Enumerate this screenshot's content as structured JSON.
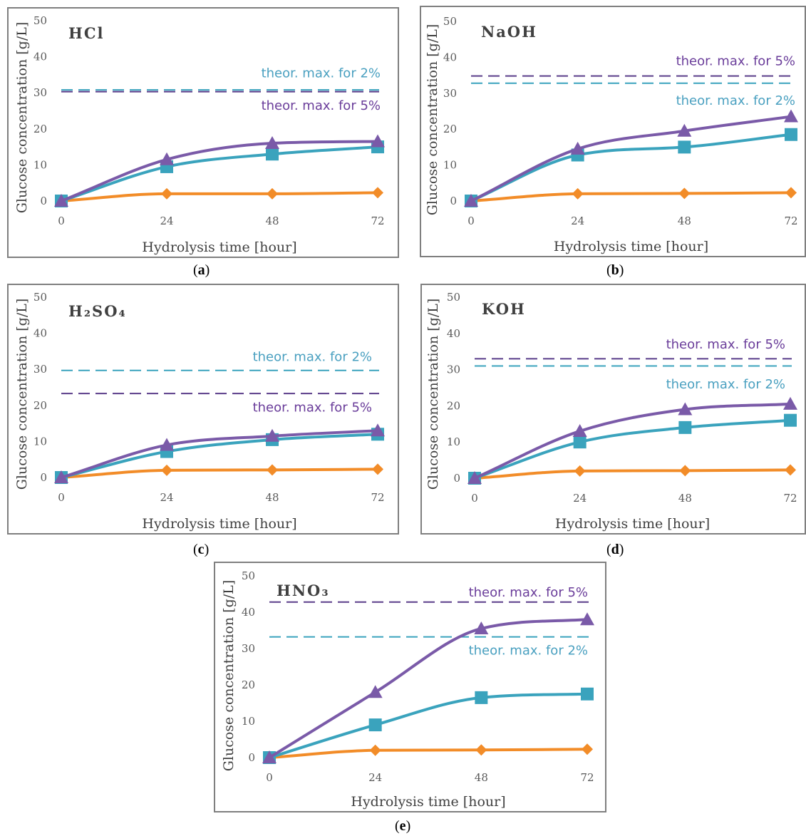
{
  "colors": {
    "purple": "#7a5aa8",
    "teal": "#3aa3bd",
    "orange": "#f28c28",
    "ann_purple": "#6a3d9a",
    "ann_teal": "#4aa0c0"
  },
  "chart_data": [
    {
      "id": "a",
      "panel_label": "a",
      "title": "HCl",
      "type": "line",
      "xlabel": "Hydrolysis time [hour]",
      "ylabel": "Glucose concentration [g/L]",
      "x": [
        0,
        24,
        48,
        72
      ],
      "xticks": [
        "0",
        "24",
        "48",
        "72"
      ],
      "ylim": [
        0,
        50
      ],
      "yticks": [
        "0",
        "10",
        "20",
        "30",
        "40",
        "50"
      ],
      "series": [
        {
          "marker": "triangle",
          "color": "#7a5aa8",
          "values": [
            0,
            11.5,
            16,
            16.5
          ]
        },
        {
          "marker": "square",
          "color": "#3aa3bd",
          "values": [
            0,
            9.5,
            13,
            15
          ]
        },
        {
          "marker": "diamond",
          "color": "#f28c28",
          "values": [
            0,
            2,
            2,
            2.3
          ]
        }
      ],
      "reference_lines": [
        {
          "value": 30.8,
          "color": "#3aa3bd"
        },
        {
          "value": 30.3,
          "color": "#5a3d8a"
        }
      ],
      "annotations": [
        {
          "text": "theor. max. for 2%",
          "color": "#4aa0c0",
          "y": 35.5
        },
        {
          "text": "theor. max. for 5%",
          "color": "#6a3d9a",
          "y": 26.5
        }
      ]
    },
    {
      "id": "b",
      "panel_label": "b",
      "title": "NaOH",
      "type": "line",
      "xlabel": "Hydrolysis time [hour]",
      "ylabel": "Glucose concentration [g/L]",
      "x": [
        0,
        24,
        48,
        72
      ],
      "xticks": [
        "0",
        "24",
        "48",
        "72"
      ],
      "ylim": [
        0,
        50
      ],
      "yticks": [
        "0",
        "10",
        "20",
        "30",
        "40",
        "50"
      ],
      "series": [
        {
          "marker": "triangle",
          "color": "#7a5aa8",
          "values": [
            0,
            14.5,
            19.5,
            23.5
          ]
        },
        {
          "marker": "square",
          "color": "#3aa3bd",
          "values": [
            0,
            12.8,
            15,
            18.5
          ]
        },
        {
          "marker": "diamond",
          "color": "#f28c28",
          "values": [
            0,
            2,
            2.1,
            2.3
          ]
        }
      ],
      "reference_lines": [
        {
          "value": 34.8,
          "color": "#5a3d8a"
        },
        {
          "value": 32.8,
          "color": "#3aa3bd"
        }
      ],
      "annotations": [
        {
          "text": "theor. max. for 5%",
          "color": "#6a3d9a",
          "y": 39
        },
        {
          "text": "theor. max. for 2%",
          "color": "#4aa0c0",
          "y": 28
        }
      ]
    },
    {
      "id": "c",
      "panel_label": "c",
      "title": "H₂SO₄",
      "type": "line",
      "xlabel": "Hydrolysis time [hour]",
      "ylabel": "Glucose concentration [g/L]",
      "x": [
        0,
        24,
        48,
        72
      ],
      "xticks": [
        "0",
        "24",
        "48",
        "72"
      ],
      "ylim": [
        0,
        50
      ],
      "yticks": [
        "0",
        "10",
        "20",
        "30",
        "40",
        "50"
      ],
      "series": [
        {
          "marker": "triangle",
          "color": "#7a5aa8",
          "values": [
            0,
            9,
            11.5,
            13
          ]
        },
        {
          "marker": "square",
          "color": "#3aa3bd",
          "values": [
            0,
            7.2,
            10.5,
            12
          ]
        },
        {
          "marker": "diamond",
          "color": "#f28c28",
          "values": [
            0,
            2,
            2.1,
            2.3
          ]
        }
      ],
      "reference_lines": [
        {
          "value": 29.7,
          "color": "#3aa3bd"
        },
        {
          "value": 23.3,
          "color": "#5a3d8a"
        }
      ],
      "annotations": [
        {
          "text": "theor. max. for 2%",
          "color": "#4aa0c0",
          "y": 33.5
        },
        {
          "text": "theor. max. for 5%",
          "color": "#6a3d9a",
          "y": 19.5
        }
      ]
    },
    {
      "id": "d",
      "panel_label": "d",
      "title": "KOH",
      "type": "line",
      "xlabel": "Hydrolysis time [hour]",
      "ylabel": "Glucose concentration [g/L]",
      "x": [
        0,
        24,
        48,
        72
      ],
      "xticks": [
        "0",
        "24",
        "48",
        "72"
      ],
      "ylim": [
        0,
        50
      ],
      "yticks": [
        "0",
        "10",
        "20",
        "30",
        "40",
        "50"
      ],
      "series": [
        {
          "marker": "triangle",
          "color": "#7a5aa8",
          "values": [
            0,
            13,
            19,
            20.5
          ]
        },
        {
          "marker": "square",
          "color": "#3aa3bd",
          "values": [
            0,
            10,
            14,
            16
          ]
        },
        {
          "marker": "diamond",
          "color": "#f28c28",
          "values": [
            0,
            2,
            2.1,
            2.3
          ]
        }
      ],
      "reference_lines": [
        {
          "value": 33,
          "color": "#5a3d8a"
        },
        {
          "value": 31,
          "color": "#3aa3bd"
        }
      ],
      "annotations": [
        {
          "text": "theor. max. for 5%",
          "color": "#6a3d9a",
          "y": 37
        },
        {
          "text": "theor. max. for 2%",
          "color": "#4aa0c0",
          "y": 26
        }
      ]
    },
    {
      "id": "e",
      "panel_label": "e",
      "title": "HNO₃",
      "type": "line",
      "xlabel": "Hydrolysis time [hour]",
      "ylabel": "Glucose concentration [g/L]",
      "x": [
        0,
        24,
        48,
        72
      ],
      "xticks": [
        "0",
        "24",
        "48",
        "72"
      ],
      "ylim": [
        0,
        50
      ],
      "yticks": [
        "0",
        "10",
        "20",
        "30",
        "40",
        "50"
      ],
      "series": [
        {
          "marker": "triangle",
          "color": "#7a5aa8",
          "values": [
            0,
            18,
            35.5,
            38
          ]
        },
        {
          "marker": "square",
          "color": "#3aa3bd",
          "values": [
            0,
            9,
            16.5,
            17.5
          ]
        },
        {
          "marker": "diamond",
          "color": "#f28c28",
          "values": [
            0,
            2,
            2.1,
            2.3
          ]
        }
      ],
      "reference_lines": [
        {
          "value": 42.8,
          "color": "#5a3d8a"
        },
        {
          "value": 33.2,
          "color": "#3aa3bd"
        }
      ],
      "annotations": [
        {
          "text": "theor. max. for 5%",
          "color": "#6a3d9a",
          "y": 45.5
        },
        {
          "text": "theor. max. for 2%",
          "color": "#4aa0c0",
          "y": 29.5
        }
      ]
    }
  ]
}
